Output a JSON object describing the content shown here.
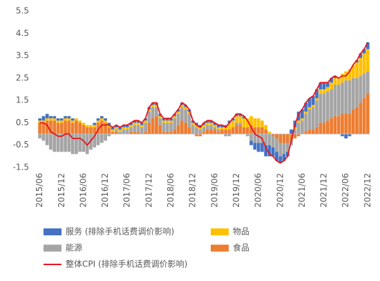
{
  "chart_data": {
    "type": "bar",
    "stacked": true,
    "categories": [
      "2015/06",
      null,
      null,
      null,
      null,
      null,
      "2015/12",
      null,
      null,
      null,
      null,
      null,
      "2016/06",
      null,
      null,
      null,
      null,
      null,
      "2016/12",
      null,
      null,
      null,
      null,
      null,
      "2017/06",
      null,
      null,
      null,
      null,
      null,
      "2017/12",
      null,
      null,
      null,
      null,
      null,
      "2018/06",
      null,
      null,
      null,
      null,
      null,
      "2018/12",
      null,
      null,
      null,
      null,
      null,
      "2019/06",
      null,
      null,
      null,
      null,
      null,
      "2019/12",
      null,
      null,
      null,
      null,
      null,
      "2020/06",
      null,
      null,
      null,
      null,
      null,
      "2020/12",
      null,
      null,
      null,
      null,
      null,
      "2021/06",
      null,
      null,
      null,
      null,
      null,
      "2021/12",
      null,
      null,
      null,
      null,
      null,
      "2022/06",
      null,
      null,
      null,
      null,
      null,
      "2022/12"
    ],
    "ylim": [
      -1.5,
      5.5
    ],
    "yticks": [
      -1.5,
      -0.5,
      0.5,
      1.5,
      2.5,
      3.5,
      4.5,
      5.5
    ],
    "grid": false,
    "legend": "bottom",
    "series": [
      {
        "name": "服务 (排除手机话费调价影响)",
        "color": "#4472c4",
        "values": [
          0.1,
          0.2,
          0.2,
          0.1,
          0.1,
          0.1,
          0.1,
          0.1,
          0.1,
          0.1,
          0,
          0,
          0,
          0,
          0,
          0.1,
          0.1,
          0.1,
          0.1,
          0.1,
          0.1,
          0.1,
          0.1,
          0.1,
          0.1,
          0.1,
          0.1,
          0.1,
          0.1,
          0.1,
          0.1,
          0.1,
          0.1,
          0.1,
          0.1,
          0.1,
          0.1,
          0.1,
          0.1,
          0.1,
          0.1,
          0.1,
          0.1,
          0.1,
          0.1,
          0.1,
          0.1,
          0.1,
          0.1,
          0.1,
          0.1,
          0.1,
          0.1,
          0.1,
          0.1,
          0.1,
          0.1,
          0,
          -0.2,
          -0.3,
          -0.4,
          -0.4,
          -0.5,
          -0.5,
          -0.4,
          -0.4,
          -0.3,
          -0.3,
          -0.2,
          0.2,
          0.3,
          0.4,
          0.4,
          0.4,
          0.4,
          0.4,
          0.4,
          0.3,
          0.3,
          0.2,
          0.2,
          0.1,
          0,
          -0.1,
          -0.2,
          -0.1,
          0,
          0.1,
          0.2,
          0.2,
          0.3
        ]
      },
      {
        "name": "物品",
        "color": "#ffc000",
        "values": [
          0.1,
          0.1,
          0.1,
          0.1,
          0.1,
          0.1,
          0.1,
          0.1,
          0.1,
          0.1,
          0.1,
          0.1,
          0.1,
          0.1,
          0.1,
          0.1,
          0.1,
          0.1,
          0.1,
          0.1,
          0.1,
          0.1,
          0.1,
          0.1,
          0.1,
          0.1,
          0.1,
          0.1,
          0.1,
          0.1,
          0.1,
          0.1,
          0.1,
          0.1,
          0.1,
          0.1,
          0.1,
          0.1,
          0.1,
          0.1,
          0.1,
          0.1,
          0.1,
          0.1,
          0.1,
          0.1,
          0.1,
          0.1,
          0.1,
          0.1,
          0.1,
          0.1,
          0.3,
          0.3,
          0.3,
          0.3,
          0.4,
          0.4,
          0.4,
          0.4,
          0.4,
          0.3,
          0.2,
          0.1,
          0,
          0,
          0,
          0,
          0,
          0,
          0.1,
          0.1,
          0.1,
          0.1,
          0.1,
          0.1,
          0.1,
          0.2,
          0.2,
          0.2,
          0.3,
          0.3,
          0.3,
          0.4,
          0.4,
          0.5,
          0.6,
          0.7,
          0.8,
          0.9,
          1
        ]
      },
      {
        "name": "能源",
        "color": "#a5a5a5",
        "values": [
          -0.2,
          -0.3,
          -0.5,
          -0.7,
          -0.8,
          -0.8,
          -0.8,
          -0.8,
          -0.8,
          -0.9,
          -0.9,
          -0.8,
          -0.8,
          -0.9,
          -0.7,
          -0.6,
          -0.5,
          -0.4,
          -0.3,
          -0.1,
          0,
          0.1,
          0.1,
          0.2,
          0.2,
          0.2,
          0.3,
          0.3,
          0.3,
          0.4,
          0.5,
          0.5,
          0.4,
          0.3,
          0.4,
          0.4,
          0.4,
          0.5,
          0.5,
          0.6,
          0.6,
          0.6,
          0.4,
          0.3,
          0.2,
          0.2,
          0.2,
          0.2,
          0.1,
          0.1,
          0,
          -0.1,
          -0.1,
          0,
          0.1,
          0.1,
          0,
          -0.1,
          -0.3,
          -0.4,
          -0.4,
          -0.4,
          -0.5,
          -0.5,
          -0.5,
          -0.6,
          -0.6,
          -0.5,
          -0.4,
          -0.2,
          0.2,
          0.5,
          0.6,
          0.8,
          0.9,
          1,
          1.2,
          1.3,
          1.3,
          1.3,
          1.3,
          1.4,
          1.4,
          1.4,
          1.5,
          1.5,
          1.4,
          1.3,
          1.2,
          1.1,
          1
        ]
      },
      {
        "name": "食品",
        "color": "#ed7d31",
        "values": [
          0.5,
          0.5,
          0.6,
          0.6,
          0.6,
          0.5,
          0.5,
          0.6,
          0.6,
          0.5,
          0.6,
          0.5,
          0.4,
          0.3,
          0.3,
          0.3,
          0.5,
          0.6,
          0.5,
          0.3,
          0.1,
          0.1,
          0,
          0,
          0,
          0.1,
          0.1,
          0.1,
          0,
          0.1,
          0.5,
          0.7,
          0.8,
          0.4,
          0.1,
          0.1,
          0.1,
          0.2,
          0.4,
          0.6,
          0.5,
          0.3,
          0,
          -0.1,
          -0.1,
          0.1,
          0.2,
          0.2,
          0.2,
          0.1,
          0.2,
          0.2,
          0.2,
          0.3,
          0.4,
          0.4,
          0.3,
          0.3,
          0.4,
          0.3,
          0.3,
          0.3,
          0.2,
          0,
          -0.1,
          -0.2,
          -0.4,
          -0.4,
          -0.4,
          -0.3,
          -0.2,
          -0.1,
          0,
          0.1,
          0.2,
          0.2,
          0.3,
          0.5,
          0.5,
          0.6,
          0.7,
          0.8,
          0.8,
          0.9,
          0.9,
          0.9,
          1.1,
          1.2,
          1.4,
          1.6,
          1.8
        ]
      },
      {
        "name": "整体CPI (排除手机话费调价影响)",
        "color": "#e8141c",
        "type": "line",
        "values": [
          0.5,
          0.5,
          0.4,
          0.1,
          0,
          -0.1,
          -0.1,
          0,
          0,
          -0.2,
          -0.2,
          -0.2,
          -0.3,
          -0.5,
          -0.3,
          -0.1,
          0.2,
          0.4,
          0.4,
          0.4,
          0.3,
          0.4,
          0.3,
          0.4,
          0.4,
          0.5,
          0.6,
          0.6,
          0.5,
          0.7,
          1.2,
          1.4,
          1.4,
          0.9,
          0.7,
          0.7,
          0.7,
          0.9,
          1.1,
          1.4,
          1.3,
          1.1,
          0.6,
          0.4,
          0.3,
          0.5,
          0.6,
          0.6,
          0.5,
          0.4,
          0.4,
          0.3,
          0.5,
          0.7,
          0.9,
          0.9,
          0.8,
          0.6,
          0.3,
          0,
          -0.1,
          -0.2,
          -0.6,
          -0.9,
          -1,
          -1.2,
          -1.3,
          -1.2,
          -1,
          -0.3,
          0.4,
          0.9,
          1.1,
          1.4,
          1.6,
          1.7,
          2,
          2.3,
          2.3,
          2.3,
          2.5,
          2.6,
          2.5,
          2.6,
          2.6,
          2.8,
          3.1,
          3.3,
          3.6,
          3.8,
          4.1
        ]
      }
    ]
  }
}
